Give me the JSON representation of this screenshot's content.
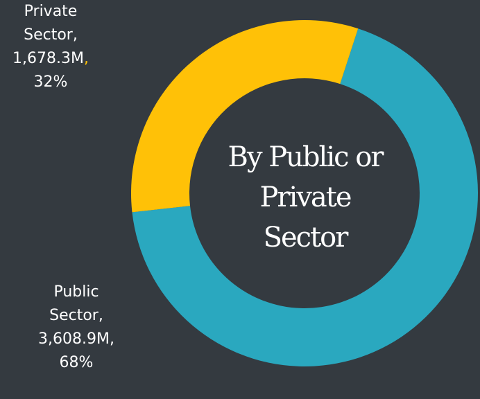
{
  "chart_data": {
    "type": "pie",
    "variant": "donut",
    "title_lines": [
      "By Public or",
      "Private",
      "Sector"
    ],
    "slices": [
      {
        "name": "Public Sector",
        "value": 3608.9,
        "value_label": "3,608.9M",
        "percent": 68,
        "percent_label": "68%",
        "color": "#2aa8bf"
      },
      {
        "name": "Private Sector",
        "value": 1678.3,
        "value_label": "1,678.3M",
        "percent": 32,
        "percent_label": "32%",
        "color": "#ffc107"
      }
    ],
    "data_labels": {
      "public": [
        "Public",
        "Sector,",
        "3,608.9M,",
        "68%"
      ],
      "private": [
        "Private",
        "Sector,",
        "1,678.3M",
        ",",
        "32%"
      ]
    },
    "legend": "none"
  }
}
